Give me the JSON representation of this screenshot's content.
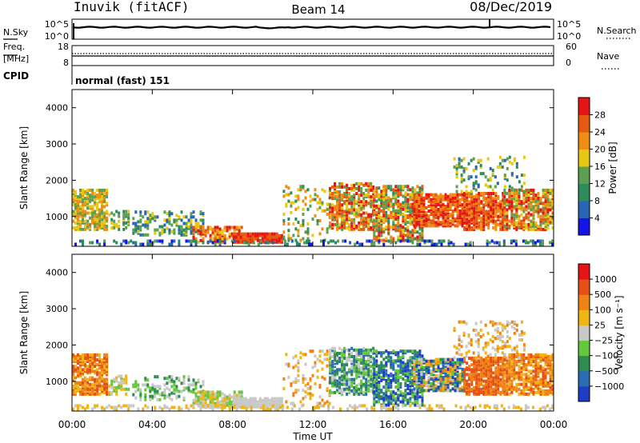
{
  "header": {
    "station": "Inuvik (fitACF)",
    "beam": "Beam 14",
    "date": "08/Dec/2019"
  },
  "summary_panels": {
    "nsky_label": "N.Sky",
    "nsky_ticks": [
      "10^5",
      "10^0"
    ],
    "nsearch_label": "N.Search",
    "freq_label_1": "Freq.",
    "freq_label_2": "[MHz]",
    "freq_ticks": [
      "18",
      "8"
    ],
    "nave_label": "Nave",
    "nave_ticks": [
      "60",
      "0"
    ],
    "cpid_label": "CPID",
    "cpid_value": "normal (fast) 151"
  },
  "colors": {
    "power_scale": [
      "#1414e6",
      "#2a64b4",
      "#2e8c5a",
      "#5aa050",
      "#e6c814",
      "#f08c14",
      "#e65a10",
      "#e61414"
    ],
    "velocity_scale": [
      "#1e3cc8",
      "#2a6cb4",
      "#2e8c50",
      "#64c83c",
      "#c8c8c8",
      "#f0b414",
      "#f08214",
      "#e65014",
      "#e61414"
    ]
  },
  "chart_data": [
    {
      "type": "heatmap",
      "title": "Power",
      "ylabel": "Slant Range [km]",
      "yticks": [
        "4000",
        "3000",
        "2000",
        "1000"
      ],
      "ylim": [
        180,
        4500
      ],
      "xlim": [
        "00:00",
        "24:00"
      ],
      "colorbar_label": "Power [dB]",
      "colorbar_ticks": [
        "28",
        "24",
        "20",
        "16",
        "12",
        "8",
        "4"
      ],
      "colorbar_range": [
        0,
        32
      ]
    },
    {
      "type": "heatmap",
      "title": "Velocity",
      "ylabel": "Slant Range [km]",
      "yticks": [
        "4000",
        "3000",
        "2000",
        "1000"
      ],
      "ylim": [
        180,
        4500
      ],
      "xlim": [
        "00:00",
        "24:00"
      ],
      "colorbar_label": "Velocity [m s⁻¹]",
      "colorbar_ticks": [
        "1000",
        "500",
        "100",
        "25",
        "−25",
        "−100",
        "−500",
        "−1000"
      ]
    }
  ],
  "xaxis": {
    "ticks": [
      "00:00",
      "04:00",
      "08:00",
      "12:00",
      "16:00",
      "20:00",
      "00:00"
    ],
    "label": "Time UT"
  }
}
